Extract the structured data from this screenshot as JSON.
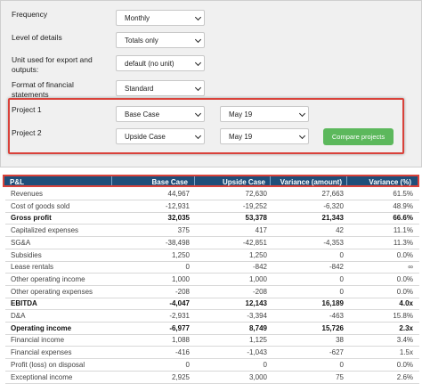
{
  "settings": {
    "frequency": {
      "label": "Frequency",
      "value": "Monthly"
    },
    "level_of_details": {
      "label": "Level of details",
      "value": "Totals only"
    },
    "unit": {
      "label": "Unit used for export and outputs:",
      "value": "default (no unit)"
    },
    "format": {
      "label": "Format of financial statements",
      "value": "Standard"
    },
    "project1": {
      "label": "Project 1",
      "scenario": "Base Case",
      "period": "May 19"
    },
    "project2": {
      "label": "Project 2",
      "scenario": "Upside Case",
      "period": "May 19"
    },
    "compare_button": "Compare projects"
  },
  "table": {
    "headers": [
      "P&L",
      "Base Case",
      "Upside Case",
      "Variance (amount)",
      "Variance (%)"
    ],
    "rows": [
      {
        "label": "Revenues",
        "base": "44,967",
        "upside": "72,630",
        "var_amt": "27,663",
        "var_pct": "61.5%",
        "bold": false
      },
      {
        "label": "Cost of goods sold",
        "base": "-12,931",
        "upside": "-19,252",
        "var_amt": "-6,320",
        "var_pct": "48.9%",
        "bold": false
      },
      {
        "label": "Gross profit",
        "base": "32,035",
        "upside": "53,378",
        "var_amt": "21,343",
        "var_pct": "66.6%",
        "bold": true
      },
      {
        "label": "Capitalized expenses",
        "base": "375",
        "upside": "417",
        "var_amt": "42",
        "var_pct": "11.1%",
        "bold": false
      },
      {
        "label": "SG&A",
        "base": "-38,498",
        "upside": "-42,851",
        "var_amt": "-4,353",
        "var_pct": "11.3%",
        "bold": false
      },
      {
        "label": "Subsidies",
        "base": "1,250",
        "upside": "1,250",
        "var_amt": "0",
        "var_pct": "0.0%",
        "bold": false
      },
      {
        "label": "Lease rentals",
        "base": "0",
        "upside": "-842",
        "var_amt": "-842",
        "var_pct": "∞",
        "bold": false
      },
      {
        "label": "Other operating income",
        "base": "1,000",
        "upside": "1,000",
        "var_amt": "0",
        "var_pct": "0.0%",
        "bold": false
      },
      {
        "label": "Other operating expenses",
        "base": "-208",
        "upside": "-208",
        "var_amt": "0",
        "var_pct": "0.0%",
        "bold": false
      },
      {
        "label": "EBITDA",
        "base": "-4,047",
        "upside": "12,143",
        "var_amt": "16,189",
        "var_pct": "4.0x",
        "bold": true
      },
      {
        "label": "D&A",
        "base": "-2,931",
        "upside": "-3,394",
        "var_amt": "-463",
        "var_pct": "15.8%",
        "bold": false
      },
      {
        "label": "Operating income",
        "base": "-6,977",
        "upside": "8,749",
        "var_amt": "15,726",
        "var_pct": "2.3x",
        "bold": true
      },
      {
        "label": "Financial income",
        "base": "1,088",
        "upside": "1,125",
        "var_amt": "38",
        "var_pct": "3.4%",
        "bold": false
      },
      {
        "label": "Financial expenses",
        "base": "-416",
        "upside": "-1,043",
        "var_amt": "-627",
        "var_pct": "1.5x",
        "bold": false
      },
      {
        "label": "Profit (loss) on disposal",
        "base": "0",
        "upside": "0",
        "var_amt": "0",
        "var_pct": "0.0%",
        "bold": false
      },
      {
        "label": "Exceptional income",
        "base": "2,925",
        "upside": "3,000",
        "var_amt": "75",
        "var_pct": "2.6%",
        "bold": false
      }
    ]
  }
}
